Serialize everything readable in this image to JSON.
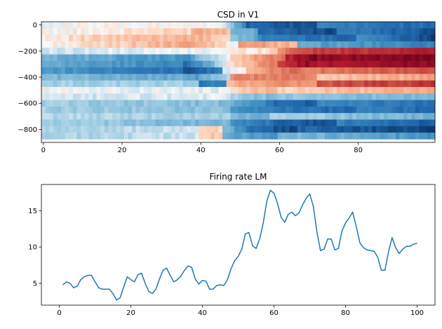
{
  "chart_data": [
    {
      "type": "heatmap",
      "title": "CSD in V1",
      "xlabel": "",
      "ylabel": "",
      "xlim": [
        -0.5,
        99.5
      ],
      "ylim": [
        -900,
        25
      ],
      "xticks": [
        0,
        20,
        40,
        60,
        80
      ],
      "yticks": [
        0,
        -200,
        -400,
        -600,
        -800
      ],
      "colormap": "RdBu_r",
      "value_range": [
        -1,
        1
      ],
      "x_columns": 100,
      "row_depths": [
        0,
        -50,
        -100,
        -150,
        -200,
        -250,
        -300,
        -350,
        -400,
        -450,
        -500,
        -550,
        -600,
        -650,
        -700,
        -750,
        -800,
        -850
      ],
      "rows": [
        {
          "depth": 0,
          "base": -0.15,
          "segments": [
            [
              45,
              0,
              0
            ],
            [
              52,
              0,
              -0.55
            ],
            [
              70,
              -0.75,
              -0.85
            ],
            [
              100,
              -0.55,
              -0.75
            ]
          ]
        },
        {
          "depth": -50,
          "base": -0.15,
          "segments": [
            [
              38,
              0,
              0.1
            ],
            [
              48,
              0.25,
              0.2
            ],
            [
              55,
              -0.3,
              -0.4
            ],
            [
              75,
              -0.7,
              -0.9
            ],
            [
              100,
              -0.6,
              -0.85
            ]
          ]
        },
        {
          "depth": -100,
          "base": -0.1,
          "segments": [
            [
              35,
              0.05,
              0.2
            ],
            [
              48,
              0.25,
              0.1
            ],
            [
              55,
              -0.3,
              -0.4
            ],
            [
              80,
              -0.6,
              -0.75
            ],
            [
              100,
              -0.5,
              -0.9
            ]
          ]
        },
        {
          "depth": -150,
          "base": -0.15,
          "segments": [
            [
              40,
              0,
              0.25
            ],
            [
              50,
              0.2,
              0
            ],
            [
              65,
              0.3,
              0.2
            ],
            [
              100,
              -0.4,
              -0.6
            ]
          ]
        },
        {
          "depth": -200,
          "base": -0.15,
          "segments": [
            [
              45,
              -0.1,
              0
            ],
            [
              60,
              0,
              0.1
            ],
            [
              66,
              0.35,
              0.55
            ],
            [
              100,
              0.6,
              0.75
            ]
          ]
        },
        {
          "depth": -250,
          "base": -0.25,
          "segments": [
            [
              38,
              -0.35,
              -0.5
            ],
            [
              48,
              -0.4,
              0
            ],
            [
              62,
              0.1,
              0.45
            ],
            [
              70,
              0.7,
              0.95
            ],
            [
              100,
              0.85,
              0.95
            ]
          ]
        },
        {
          "depth": -300,
          "base": -0.3,
          "segments": [
            [
              36,
              -0.4,
              -0.55
            ],
            [
              47,
              -0.75,
              -0.1
            ],
            [
              60,
              0.05,
              0.4
            ],
            [
              68,
              0.6,
              0.85
            ],
            [
              100,
              0.75,
              0.9
            ]
          ]
        },
        {
          "depth": -350,
          "base": -0.35,
          "segments": [
            [
              36,
              -0.45,
              -0.7
            ],
            [
              46,
              -0.9,
              -0.6
            ],
            [
              52,
              -0.1,
              0.05
            ],
            [
              66,
              0.2,
              0.5
            ],
            [
              100,
              0.4,
              0.55
            ]
          ]
        },
        {
          "depth": -400,
          "base": -0.15,
          "segments": [
            [
              38,
              -0.3,
              -0.4
            ],
            [
              48,
              -0.45,
              -0.2
            ],
            [
              62,
              0.35,
              0.4
            ],
            [
              70,
              0.4,
              0.35
            ],
            [
              100,
              0.15,
              0.25
            ]
          ]
        },
        {
          "depth": -450,
          "base": -0.1,
          "segments": [
            [
              40,
              -0.2,
              -0.2
            ],
            [
              47,
              -0.7,
              -0.55
            ],
            [
              60,
              0.2,
              0.3
            ],
            [
              70,
              0.35,
              0.25
            ],
            [
              100,
              0.55,
              0.65
            ]
          ]
        },
        {
          "depth": -500,
          "base": -0.05,
          "segments": [
            [
              48,
              0,
              -0.05
            ],
            [
              60,
              0.1,
              0.2
            ],
            [
              100,
              0.1,
              0.25
            ]
          ]
        },
        {
          "depth": -550,
          "base": -0.15,
          "segments": [
            [
              48,
              -0.1,
              -0.05
            ],
            [
              60,
              -0.2,
              -0.3
            ],
            [
              100,
              -0.25,
              -0.35
            ]
          ]
        },
        {
          "depth": -600,
          "base": -0.25,
          "segments": [
            [
              48,
              -0.2,
              -0.3
            ],
            [
              58,
              -0.4,
              -0.6
            ],
            [
              70,
              -0.7,
              -0.8
            ],
            [
              100,
              -0.55,
              -0.7
            ]
          ]
        },
        {
          "depth": -650,
          "base": -0.2,
          "segments": [
            [
              48,
              -0.2,
              -0.3
            ],
            [
              60,
              -0.45,
              -0.65
            ],
            [
              80,
              -0.65,
              -0.75
            ],
            [
              100,
              -0.6,
              -0.75
            ]
          ]
        },
        {
          "depth": -700,
          "base": -0.15,
          "segments": [
            [
              48,
              -0.15,
              -0.2
            ],
            [
              58,
              -0.3,
              -0.4
            ],
            [
              100,
              -0.2,
              -0.35
            ]
          ]
        },
        {
          "depth": -750,
          "base": -0.25,
          "segments": [
            [
              48,
              -0.2,
              -0.35
            ],
            [
              58,
              -0.55,
              -0.65
            ],
            [
              75,
              -0.75,
              -0.85
            ],
            [
              100,
              -0.6,
              -0.8
            ]
          ]
        },
        {
          "depth": -800,
          "base": -0.25,
          "segments": [
            [
              40,
              -0.2,
              -0.1
            ],
            [
              46,
              0.15,
              0.1
            ],
            [
              52,
              -0.35,
              -0.5
            ],
            [
              65,
              -0.7,
              -0.9
            ],
            [
              100,
              -0.75,
              -0.9
            ]
          ]
        },
        {
          "depth": -850,
          "base": -0.2,
          "segments": [
            [
              40,
              -0.2,
              -0.1
            ],
            [
              46,
              0.15,
              0.1
            ],
            [
              60,
              -0.4,
              -0.5
            ],
            [
              100,
              -0.3,
              -0.5
            ]
          ]
        }
      ]
    },
    {
      "type": "line",
      "title": "Firing rate LM",
      "xlabel": "",
      "ylabel": "",
      "xlim": [
        -5,
        105
      ],
      "ylim": [
        2,
        18.6
      ],
      "xticks": [
        0,
        20,
        40,
        60,
        80,
        100
      ],
      "yticks": [
        5,
        10,
        15
      ],
      "line_color": "#1f77b4",
      "x": [
        1,
        2,
        3,
        4,
        5,
        6,
        7,
        8,
        9,
        10,
        11,
        12,
        13,
        14,
        15,
        16,
        17,
        18,
        19,
        20,
        21,
        22,
        23,
        24,
        25,
        26,
        27,
        28,
        29,
        30,
        31,
        32,
        33,
        34,
        35,
        36,
        37,
        38,
        39,
        40,
        41,
        42,
        43,
        44,
        45,
        46,
        47,
        48,
        49,
        50,
        51,
        52,
        53,
        54,
        55,
        56,
        57,
        58,
        59,
        60,
        61,
        62,
        63,
        64,
        65,
        66,
        67,
        68,
        69,
        70,
        71,
        72,
        73,
        74,
        75,
        76,
        77,
        78,
        79,
        80,
        81,
        82,
        83,
        84,
        85,
        86,
        87,
        88,
        89,
        90,
        91,
        92,
        93,
        94,
        95,
        96,
        97,
        98,
        99,
        100
      ],
      "y": [
        4.8,
        5.2,
        5.0,
        4.4,
        4.6,
        5.5,
        5.9,
        6.1,
        6.1,
        5.2,
        4.4,
        4.2,
        4.2,
        4.2,
        3.6,
        2.7,
        3.0,
        4.5,
        5.9,
        5.5,
        5.2,
        6.2,
        6.4,
        5.0,
        3.9,
        3.6,
        4.2,
        5.6,
        6.8,
        7.1,
        6.1,
        5.2,
        5.5,
        6.0,
        6.8,
        7.4,
        7.2,
        5.6,
        4.9,
        5.4,
        5.3,
        4.2,
        4.2,
        4.7,
        4.8,
        4.7,
        5.5,
        7.0,
        8.1,
        8.7,
        9.7,
        11.8,
        12.0,
        10.2,
        9.8,
        11.1,
        13.3,
        16.3,
        17.8,
        17.4,
        16.0,
        14.1,
        13.4,
        14.5,
        14.8,
        14.3,
        14.7,
        15.8,
        16.7,
        17.3,
        15.6,
        12.1,
        9.5,
        9.7,
        11.1,
        11.1,
        9.6,
        9.8,
        12.2,
        13.3,
        14.0,
        14.8,
        12.8,
        10.6,
        9.9,
        9.6,
        9.5,
        9.4,
        8.6,
        6.8,
        6.8,
        9.3,
        11.3,
        9.9,
        9.1,
        9.7,
        10.1,
        10.1,
        10.4,
        10.5
      ]
    }
  ]
}
